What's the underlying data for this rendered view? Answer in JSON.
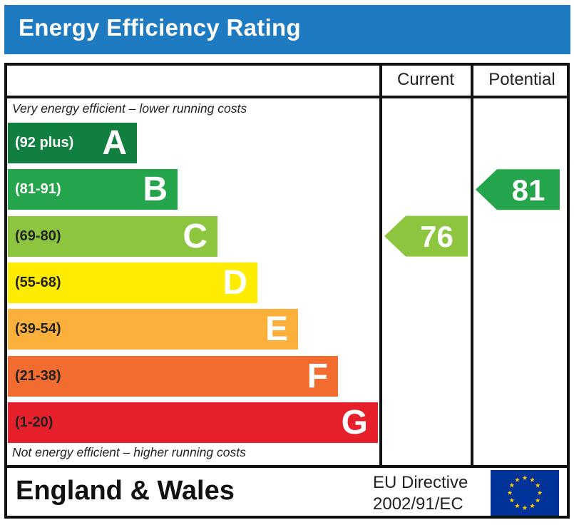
{
  "header": {
    "title": "Energy Efficiency Rating"
  },
  "columns": {
    "current": "Current",
    "potential": "Potential"
  },
  "notes": {
    "top": "Very energy efficient – lower running costs",
    "bottom": "Not energy efficient – higher running costs"
  },
  "chart_data": {
    "type": "bar",
    "title": "Energy Efficiency Rating",
    "categories": [
      "A",
      "B",
      "C",
      "D",
      "E",
      "F",
      "G"
    ],
    "bands": [
      {
        "letter": "A",
        "range": "(92 plus)",
        "color": "#117f3f",
        "text_color": "#ffffff"
      },
      {
        "letter": "B",
        "range": "(81-91)",
        "color": "#24a44b",
        "text_color": "#ffffff"
      },
      {
        "letter": "C",
        "range": "(69-80)",
        "color": "#8dc53f",
        "text_color": "#222222"
      },
      {
        "letter": "D",
        "range": "(55-68)",
        "color": "#ffec00",
        "text_color": "#222222"
      },
      {
        "letter": "E",
        "range": "(39-54)",
        "color": "#fbb03b",
        "text_color": "#222222"
      },
      {
        "letter": "F",
        "range": "(21-38)",
        "color": "#f26b2f",
        "text_color": "#222222"
      },
      {
        "letter": "G",
        "range": "(1-20)",
        "color": "#e6202a",
        "text_color": "#222222"
      }
    ],
    "current": {
      "value": 76,
      "band": "C",
      "color": "#8dc53f"
    },
    "potential": {
      "value": 81,
      "band": "B",
      "color": "#24a44b"
    }
  },
  "footer": {
    "country": "England & Wales",
    "directive_line1": "EU Directive",
    "directive_line2": "2002/91/EC",
    "flag_color": "#003399",
    "star_color": "#ffcc00"
  }
}
